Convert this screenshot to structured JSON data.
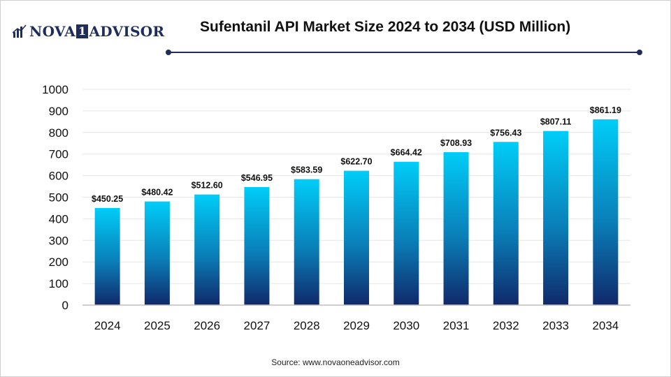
{
  "logo": {
    "part1": "NOVA",
    "box": "1",
    "part2": "ADVISOR"
  },
  "colors": {
    "bar_top": "#00cdf8",
    "bar_bottom": "#10296a",
    "brand": "#1e2d59",
    "grid": "#e6e6e6"
  },
  "chart_data": {
    "type": "bar",
    "title": "Sufentanil API Market Size 2024 to 2034 (USD Million)",
    "xlabel": "",
    "ylabel": "",
    "categories": [
      "2024",
      "2025",
      "2026",
      "2027",
      "2028",
      "2029",
      "2030",
      "2031",
      "2032",
      "2033",
      "2034"
    ],
    "values": [
      450.25,
      480.42,
      512.6,
      546.95,
      583.59,
      622.7,
      664.42,
      708.93,
      756.43,
      807.11,
      861.19
    ],
    "value_labels": [
      "$450.25",
      "$480.42",
      "$512.60",
      "$546.95",
      "$583.59",
      "$622.70",
      "$664.42",
      "$708.93",
      "$756.43",
      "$807.11",
      "$861.19"
    ],
    "ylim": [
      0,
      1000
    ],
    "yticks": [
      "0",
      "100",
      "200",
      "300",
      "400",
      "500",
      "600",
      "700",
      "800",
      "900",
      "1000"
    ],
    "grid": true,
    "legend": "none"
  },
  "source": "Source: www.novaoneadvisor.com"
}
